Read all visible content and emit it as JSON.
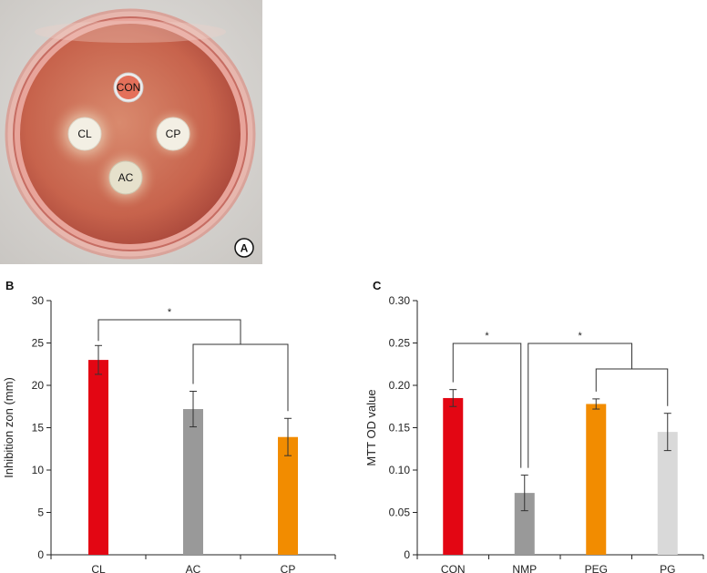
{
  "photo": {
    "panel_label": "A",
    "discs": [
      "CON",
      "CL",
      "CP",
      "AC"
    ]
  },
  "chart_data": [
    {
      "panel_label": "B",
      "type": "bar",
      "categories": [
        "CL",
        "AC",
        "CP"
      ],
      "values": [
        23.0,
        17.2,
        13.9
      ],
      "errors": [
        1.7,
        2.1,
        2.2
      ],
      "colors": [
        "#e30613",
        "#999999",
        "#f28c00"
      ],
      "ylabel": "Inhibition zon (mm)",
      "ylim": [
        0,
        30
      ],
      "yticks": [
        "0",
        "5",
        "10",
        "15",
        "20",
        "25",
        "30"
      ],
      "significance": [
        {
          "label": "*",
          "left": "CL",
          "right": [
            "AC",
            "CP"
          ]
        }
      ],
      "grid": false
    },
    {
      "panel_label": "C",
      "type": "bar",
      "categories": [
        "CON",
        "NMP",
        "PEG",
        "PG"
      ],
      "values": [
        0.185,
        0.073,
        0.178,
        0.145
      ],
      "errors": [
        0.01,
        0.021,
        0.006,
        0.022
      ],
      "colors": [
        "#e30613",
        "#999999",
        "#f28c00",
        "#d9d9d9"
      ],
      "ylabel": "MTT OD value",
      "ylim": [
        0,
        0.3
      ],
      "yticks": [
        "0",
        "0.05",
        "0.10",
        "0.15",
        "0.20",
        "0.25",
        "0.30"
      ],
      "significance": [
        {
          "label": "*",
          "left": "CON",
          "right": [
            "NMP"
          ]
        },
        {
          "label": "*",
          "left": "NMP",
          "right": [
            "PEG",
            "PG"
          ]
        }
      ],
      "grid": false
    }
  ]
}
